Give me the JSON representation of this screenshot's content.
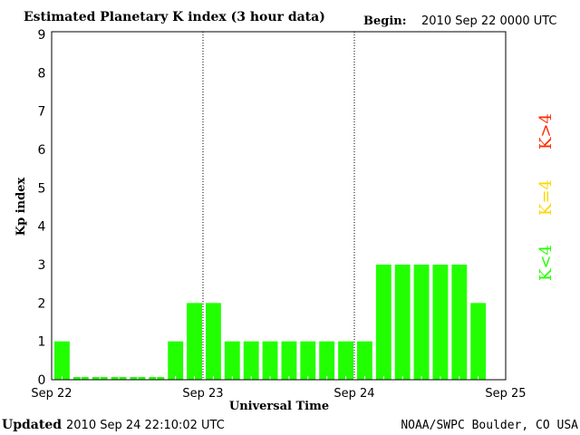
{
  "chart_data": {
    "type": "bar",
    "title": "Estimated Planetary K index (3 hour data)",
    "begin_label": "Begin:",
    "begin_value": "2010 Sep 22 0000 UTC",
    "xlabel": "Universal Time",
    "ylabel": "Kp index",
    "ylim": [
      0,
      9
    ],
    "yticks": [
      "0",
      "1",
      "2",
      "3",
      "4",
      "5",
      "6",
      "7",
      "8",
      "9"
    ],
    "xticks": [
      "Sep 22",
      "Sep 23",
      "Sep 24",
      "Sep 25"
    ],
    "interval_hours": 3,
    "values": [
      1,
      0,
      0,
      0,
      0,
      0,
      1,
      2,
      2,
      1,
      1,
      1,
      1,
      1,
      1,
      1,
      1,
      3,
      3,
      3,
      3,
      3,
      2
    ],
    "legend": [
      {
        "label": "K<4",
        "color": "#22ff00"
      },
      {
        "label": "K=4",
        "color": "#ffd700"
      },
      {
        "label": "K>4",
        "color": "#ff2a00"
      }
    ],
    "updated_label": "Updated",
    "updated_value": "2010 Sep 24 22:10:02 UTC",
    "source": "NOAA/SWPC Boulder, CO USA"
  }
}
